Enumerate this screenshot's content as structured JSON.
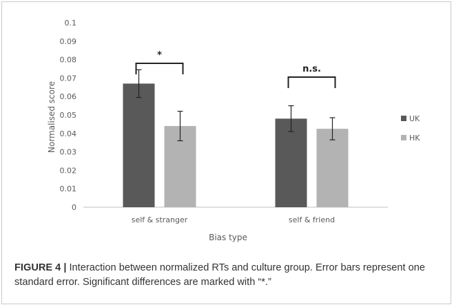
{
  "chart_data": {
    "type": "bar",
    "categories": [
      "self & stranger",
      "self & friend"
    ],
    "series": [
      {
        "name": "UK",
        "values": [
          0.067,
          0.048
        ],
        "errors": [
          0.0075,
          0.007
        ],
        "color": "#595959"
      },
      {
        "name": "HK",
        "values": [
          0.044,
          0.0425
        ],
        "errors": [
          0.008,
          0.006
        ],
        "color": "#b3b3b3"
      }
    ],
    "xlabel": "Bias type",
    "ylabel": "Normalised score",
    "ylim": [
      0,
      0.1
    ],
    "yticks": [
      "0",
      "0.01",
      "0.02",
      "0.03",
      "0.04",
      "0.05",
      "0.06",
      "0.07",
      "0.08",
      "0.09",
      "0.1"
    ],
    "legend_position": "right",
    "grid": false,
    "annotations": [
      {
        "text": "*",
        "category": "self & stranger",
        "level": 0.078
      },
      {
        "text": "n.s.",
        "category": "self & friend",
        "level": 0.0705
      }
    ]
  },
  "caption": {
    "label": "FIGURE 4 |",
    "text": " Interaction between normalized RTs and culture group. Error bars represent one standard error. Significant differences are marked with “*.”"
  }
}
